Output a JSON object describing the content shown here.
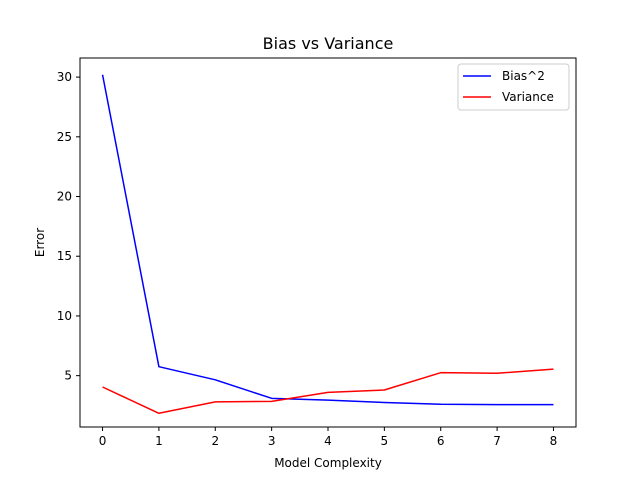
{
  "chart_data": {
    "type": "line",
    "title": "Bias vs Variance",
    "xlabel": "Model Complexity",
    "ylabel": "Error",
    "x": [
      0,
      1,
      2,
      3,
      4,
      5,
      6,
      7,
      8
    ],
    "xlim": [
      -0.4,
      8.4
    ],
    "ylim": [
      0.7,
      31.6
    ],
    "xticks": [
      0,
      1,
      2,
      3,
      4,
      5,
      6,
      7,
      8
    ],
    "yticks": [
      5,
      10,
      15,
      20,
      25,
      30
    ],
    "grid": false,
    "legend_position": "top-right",
    "series": [
      {
        "name": "Bias^2",
        "color": "#0000ff",
        "values": [
          30.2,
          5.75,
          4.65,
          3.1,
          2.95,
          2.75,
          2.6,
          2.57,
          2.57
        ]
      },
      {
        "name": "Variance",
        "color": "#ff0000",
        "values": [
          4.05,
          1.85,
          2.8,
          2.85,
          3.6,
          3.8,
          5.25,
          5.2,
          5.55
        ]
      }
    ]
  }
}
